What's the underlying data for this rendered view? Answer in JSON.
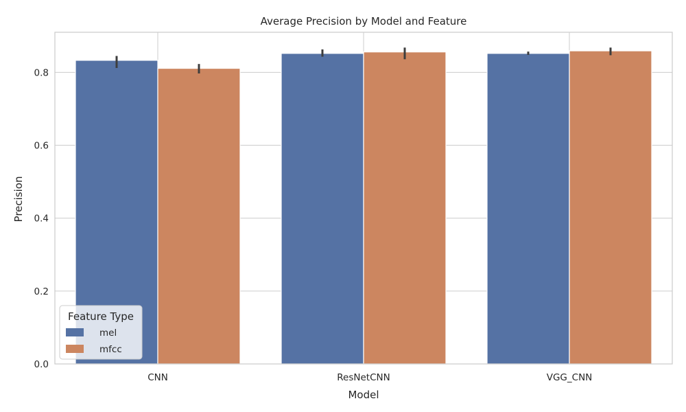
{
  "chart_data": {
    "type": "bar",
    "title": "Average Precision by Model and Feature",
    "xlabel": "Model",
    "ylabel": "Precision",
    "categories": [
      "CNN",
      "ResNetCNN",
      "VGG_CNN"
    ],
    "ylim": [
      0,
      0.91
    ],
    "yticks": [
      "0.0",
      "0.2",
      "0.4",
      "0.6",
      "0.8"
    ],
    "grid": true,
    "legend": {
      "title": "Feature Type",
      "placement": "lower-left"
    },
    "series": [
      {
        "name": "mel",
        "color": "#5572a4",
        "values": [
          0.833,
          0.852,
          0.852
        ],
        "err_low": [
          0.812,
          0.843,
          0.848
        ],
        "err_high": [
          0.845,
          0.863,
          0.857
        ]
      },
      {
        "name": "mfcc",
        "color": "#cc8660",
        "values": [
          0.811,
          0.856,
          0.859
        ],
        "err_low": [
          0.797,
          0.836,
          0.847
        ],
        "err_high": [
          0.823,
          0.868,
          0.868
        ]
      }
    ]
  }
}
